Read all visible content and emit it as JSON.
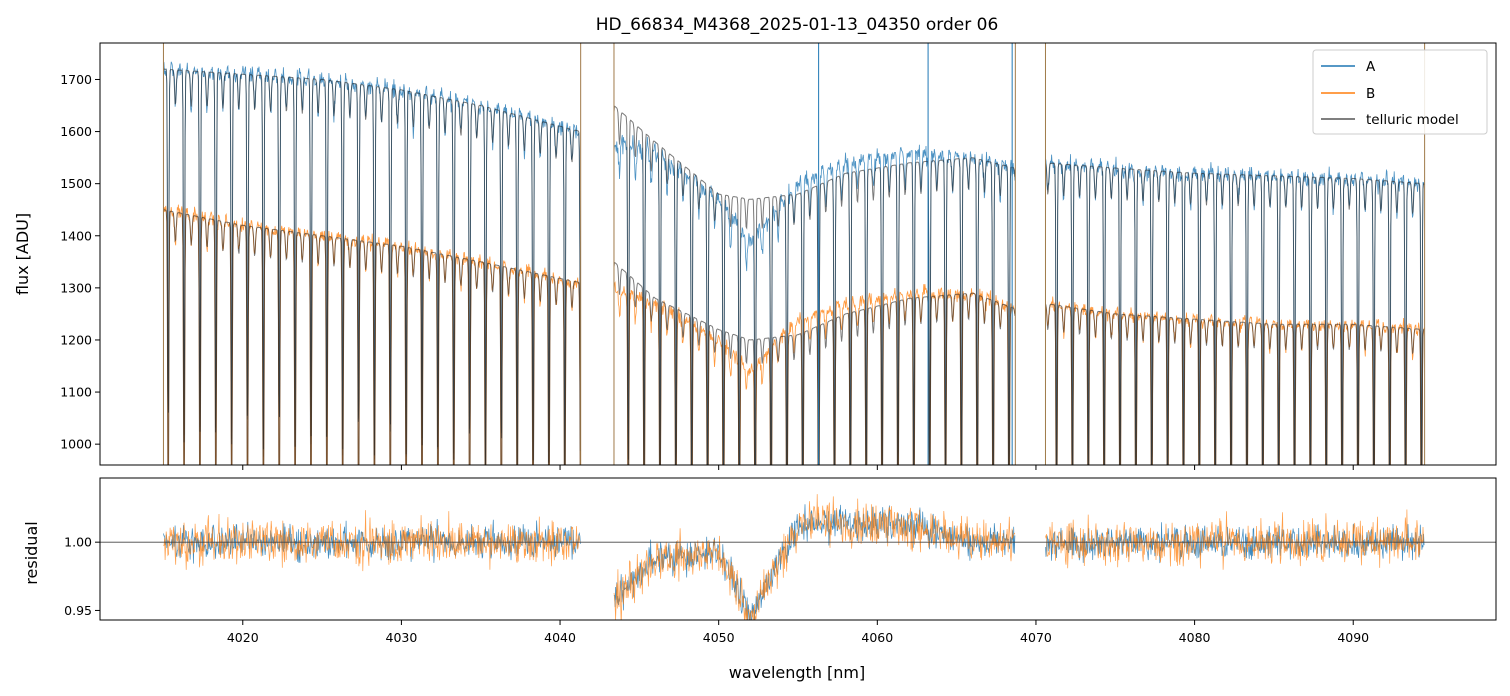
{
  "chart_data": {
    "type": "line",
    "title": "HD_66834_M4368_2025-01-13_04350  order 06",
    "xlabel": "wavelength [nm]",
    "xlim": [
      4011,
      4099
    ],
    "xticks": [
      4020,
      4030,
      4040,
      4050,
      4060,
      4070,
      4080,
      4090
    ],
    "segments": [
      [
        4015.0,
        4041.3
      ],
      [
        4043.4,
        4068.7
      ],
      [
        4070.6,
        4094.5
      ]
    ],
    "colors": {
      "A": "#1f77b4",
      "B": "#ff7f0e",
      "telluric": "#555555"
    },
    "panels": [
      {
        "name": "flux",
        "ylabel": "flux [ADU]",
        "ylim": [
          960,
          1770
        ],
        "yticks": [
          1000,
          1100,
          1200,
          1300,
          1400,
          1500,
          1600,
          1700
        ],
        "legend": {
          "position": "top-right",
          "entries": [
            {
              "label": "A",
              "color": "#1f77b4"
            },
            {
              "label": "B",
              "color": "#ff7f0e"
            },
            {
              "label": "telluric model",
              "color": "#555555"
            }
          ]
        },
        "series": [
          {
            "name": "A",
            "color": "#1f77b4",
            "continuum_x": [
              4015,
              4020,
              4025,
              4030,
              4035,
              4041.3,
              4043.4,
              4046,
              4050,
              4052,
              4055,
              4058,
              4062,
              4066,
              4068.7,
              4070.6,
              4075,
              4080,
              4085,
              4090,
              4094.5
            ],
            "continuum_y": [
              1720,
              1710,
              1700,
              1680,
              1650,
              1600,
              1580,
              1560,
              1470,
              1390,
              1500,
              1540,
              1560,
              1550,
              1530,
              1540,
              1530,
              1520,
              1515,
              1510,
              1500
            ]
          },
          {
            "name": "B",
            "color": "#ff7f0e",
            "continuum_x": [
              4015,
              4020,
              4025,
              4030,
              4035,
              4041.3,
              4043.4,
              4046,
              4050,
              4052,
              4055,
              4058,
              4062,
              4066,
              4068.7,
              4070.6,
              4075,
              4080,
              4085,
              4090,
              4094.5
            ],
            "continuum_y": [
              1450,
              1420,
              1400,
              1380,
              1350,
              1310,
              1300,
              1270,
              1200,
              1140,
              1240,
              1270,
              1290,
              1290,
              1260,
              1270,
              1250,
              1240,
              1230,
              1230,
              1220
            ]
          },
          {
            "name": "telluric model",
            "color": "#555555",
            "continuum_x": [
              4015,
              4020,
              4025,
              4030,
              4035,
              4041.3,
              4043.4,
              4046,
              4050,
              4052,
              4055,
              4058,
              4062,
              4066,
              4068.7,
              4070.6,
              4075,
              4080,
              4085,
              4090,
              4094.5
            ],
            "continuum_y_A": [
              1720,
              1710,
              1700,
              1680,
              1650,
              1600,
              1650,
              1580,
              1480,
              1470,
              1480,
              1520,
              1540,
              1550,
              1530,
              1540,
              1530,
              1520,
              1515,
              1510,
              1500
            ],
            "continuum_y_B": [
              1450,
              1420,
              1400,
              1380,
              1350,
              1310,
              1350,
              1280,
              1220,
              1200,
              1210,
              1250,
              1280,
              1290,
              1260,
              1270,
              1250,
              1240,
              1230,
              1230,
              1220
            ]
          }
        ]
      },
      {
        "name": "residual",
        "ylabel": "residual",
        "ylim": [
          0.943,
          1.047
        ],
        "yticks": [
          0.95,
          1.0
        ],
        "ytick_labels": [
          "0.95",
          "1.00"
        ],
        "reference_line": 1.0,
        "series": [
          {
            "name": "A",
            "color": "#1f77b4"
          },
          {
            "name": "B",
            "color": "#ff7f0e"
          }
        ]
      }
    ]
  }
}
